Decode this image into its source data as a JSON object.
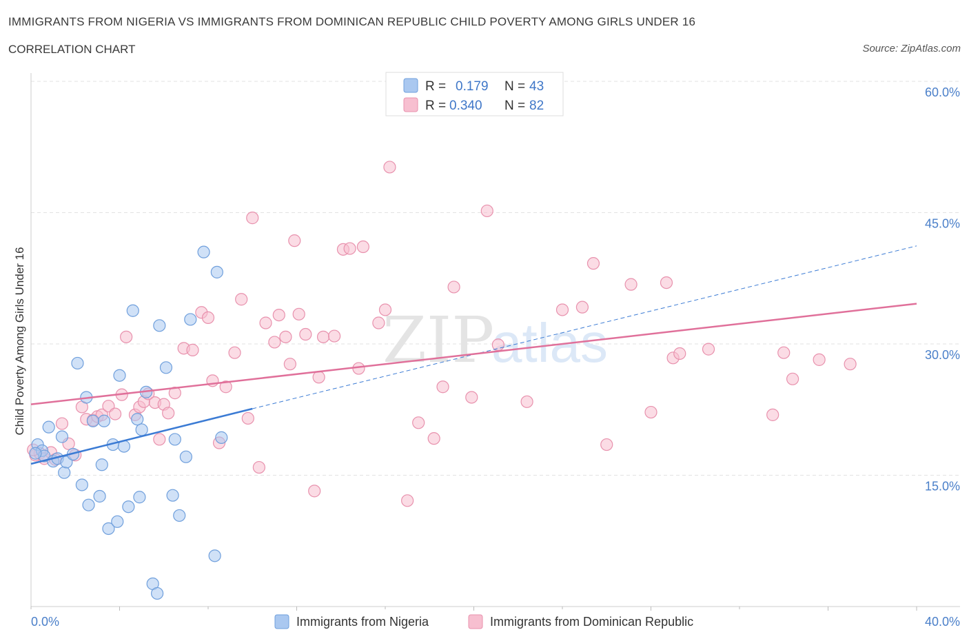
{
  "header": {
    "title": "IMMIGRANTS FROM NIGERIA VS IMMIGRANTS FROM DOMINICAN REPUBLIC CHILD POVERTY AMONG GIRLS UNDER 16",
    "subtitle": "CORRELATION CHART",
    "source": "Source: ZipAtlas.com"
  },
  "legend": {
    "r_label": "R =",
    "n_label": "N =",
    "rows": [
      {
        "r": "0.179",
        "n": "43"
      },
      {
        "r": "0.340",
        "n": "82"
      }
    ]
  },
  "watermark": {
    "zip": "ZIP",
    "atlas": "atlas"
  },
  "colors": {
    "nigeria_fill": "#aac8f0",
    "nigeria_stroke": "#6f9fdc",
    "nigeria_line": "#3b7bd4",
    "dominican_fill": "#f7bfd0",
    "dominican_stroke": "#e891ad",
    "dominican_line": "#e0709a"
  },
  "chart_data": {
    "type": "scatter",
    "title": "IMMIGRANTS FROM NIGERIA VS IMMIGRANTS FROM DOMINICAN REPUBLIC CHILD POVERTY AMONG GIRLS UNDER 16",
    "xlabel": "",
    "ylabel": "Child Poverty Among Girls Under 16",
    "xlim": [
      0,
      40
    ],
    "ylim": [
      0,
      60
    ],
    "x_tick_labels": [
      "0.0%",
      "40.0%"
    ],
    "y_ticks": [
      15,
      30,
      45,
      60
    ],
    "y_tick_labels": [
      "15.0%",
      "30.0%",
      "45.0%",
      "60.0%"
    ],
    "grid": true,
    "legend_position": "top-center",
    "series": [
      {
        "name": "Immigrants from Nigeria",
        "R": 0.179,
        "N": 43,
        "trend": {
          "x0": 0,
          "y0": 16.3,
          "x1": 10,
          "y1": 22.6,
          "extend_to_x": 40,
          "extend_to_y": 41.2
        },
        "points": [
          [
            0.3,
            18.5
          ],
          [
            0.5,
            17.8
          ],
          [
            0.6,
            17.2
          ],
          [
            0.8,
            20.5
          ],
          [
            1.0,
            16.6
          ],
          [
            1.2,
            16.9
          ],
          [
            1.4,
            19.4
          ],
          [
            1.5,
            15.3
          ],
          [
            1.6,
            16.5
          ],
          [
            1.9,
            17.4
          ],
          [
            2.1,
            27.8
          ],
          [
            2.3,
            13.9
          ],
          [
            2.5,
            23.9
          ],
          [
            2.6,
            11.6
          ],
          [
            2.8,
            21.2
          ],
          [
            3.1,
            12.6
          ],
          [
            3.2,
            16.2
          ],
          [
            3.3,
            21.2
          ],
          [
            3.5,
            8.9
          ],
          [
            3.7,
            18.5
          ],
          [
            3.9,
            9.7
          ],
          [
            4.0,
            26.4
          ],
          [
            4.2,
            18.3
          ],
          [
            4.4,
            11.4
          ],
          [
            4.6,
            33.8
          ],
          [
            4.8,
            21.4
          ],
          [
            4.9,
            12.5
          ],
          [
            5.0,
            20.2
          ],
          [
            5.2,
            24.5
          ],
          [
            5.5,
            2.6
          ],
          [
            5.7,
            1.5
          ],
          [
            5.8,
            32.1
          ],
          [
            6.1,
            27.3
          ],
          [
            6.4,
            12.7
          ],
          [
            6.5,
            19.1
          ],
          [
            6.7,
            10.4
          ],
          [
            7.0,
            17.1
          ],
          [
            7.2,
            32.8
          ],
          [
            7.8,
            40.5
          ],
          [
            8.3,
            5.8
          ],
          [
            8.4,
            38.2
          ],
          [
            8.6,
            19.3
          ],
          [
            0.2,
            17.5
          ]
        ]
      },
      {
        "name": "Immigrants from Dominican Republic",
        "R": 0.34,
        "N": 82,
        "trend": {
          "x0": 0,
          "y0": 23.1,
          "x1": 40,
          "y1": 34.6
        },
        "points": [
          [
            0.2,
            17.3
          ],
          [
            0.4,
            17.5
          ],
          [
            0.6,
            16.9
          ],
          [
            0.9,
            17.6
          ],
          [
            1.1,
            16.8
          ],
          [
            1.4,
            20.9
          ],
          [
            1.7,
            18.6
          ],
          [
            2.0,
            17.3
          ],
          [
            2.3,
            22.8
          ],
          [
            2.5,
            21.4
          ],
          [
            2.8,
            21.3
          ],
          [
            3.0,
            21.7
          ],
          [
            3.2,
            21.9
          ],
          [
            3.5,
            22.9
          ],
          [
            3.8,
            22.0
          ],
          [
            4.1,
            24.2
          ],
          [
            4.3,
            30.8
          ],
          [
            4.7,
            21.9
          ],
          [
            4.9,
            22.8
          ],
          [
            5.1,
            23.4
          ],
          [
            5.3,
            24.3
          ],
          [
            5.6,
            23.3
          ],
          [
            5.8,
            19.1
          ],
          [
            6.0,
            23.1
          ],
          [
            6.2,
            22.1
          ],
          [
            6.5,
            24.4
          ],
          [
            6.9,
            29.5
          ],
          [
            7.3,
            29.3
          ],
          [
            7.7,
            33.6
          ],
          [
            8.0,
            33.0
          ],
          [
            8.2,
            25.8
          ],
          [
            8.5,
            18.7
          ],
          [
            8.8,
            25.1
          ],
          [
            9.2,
            29.0
          ],
          [
            9.5,
            35.1
          ],
          [
            9.8,
            21.5
          ],
          [
            10.0,
            44.4
          ],
          [
            10.3,
            15.9
          ],
          [
            10.6,
            32.4
          ],
          [
            11.0,
            30.2
          ],
          [
            11.2,
            33.3
          ],
          [
            11.5,
            30.8
          ],
          [
            11.7,
            27.7
          ],
          [
            11.9,
            41.8
          ],
          [
            12.1,
            33.4
          ],
          [
            12.4,
            31.1
          ],
          [
            12.8,
            13.2
          ],
          [
            13.0,
            26.2
          ],
          [
            13.2,
            30.8
          ],
          [
            13.7,
            30.9
          ],
          [
            14.1,
            40.8
          ],
          [
            14.4,
            40.9
          ],
          [
            14.8,
            27.2
          ],
          [
            15.0,
            41.1
          ],
          [
            15.7,
            32.4
          ],
          [
            16.2,
            50.2
          ],
          [
            16.0,
            33.9
          ],
          [
            17.0,
            12.1
          ],
          [
            17.5,
            21.0
          ],
          [
            18.2,
            19.2
          ],
          [
            18.6,
            25.1
          ],
          [
            19.1,
            36.5
          ],
          [
            19.9,
            23.9
          ],
          [
            20.6,
            45.2
          ],
          [
            21.1,
            29.9
          ],
          [
            22.4,
            23.4
          ],
          [
            24.0,
            33.9
          ],
          [
            24.9,
            34.2
          ],
          [
            25.4,
            39.2
          ],
          [
            26.0,
            18.5
          ],
          [
            27.1,
            36.8
          ],
          [
            28.0,
            22.2
          ],
          [
            28.7,
            37.0
          ],
          [
            29.0,
            28.4
          ],
          [
            29.3,
            28.9
          ],
          [
            30.6,
            29.4
          ],
          [
            33.5,
            21.9
          ],
          [
            34.0,
            29.0
          ],
          [
            34.4,
            26.0
          ],
          [
            35.6,
            28.2
          ],
          [
            37.0,
            27.7
          ],
          [
            0.1,
            17.9
          ]
        ]
      }
    ]
  }
}
